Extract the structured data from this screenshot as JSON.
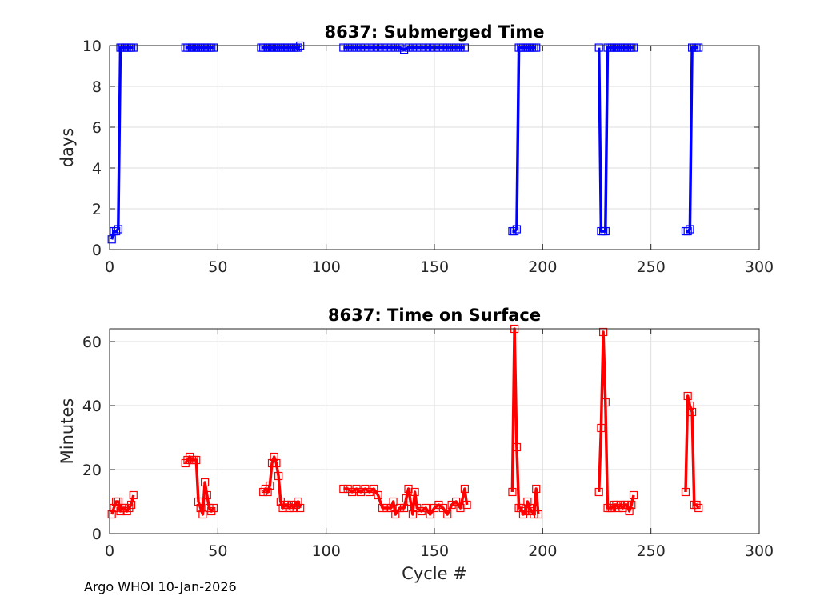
{
  "chart_data": [
    {
      "type": "line",
      "title": "8637: Submerged Time",
      "xlabel": "",
      "ylabel": "days",
      "xlim": [
        0,
        300
      ],
      "ylim": [
        0,
        10
      ],
      "xticks": [
        0,
        50,
        100,
        150,
        200,
        250,
        300
      ],
      "yticks": [
        0,
        2,
        4,
        6,
        8,
        10
      ],
      "grid": true,
      "color": "#0000ff",
      "marker": "square",
      "series": [
        {
          "name": "seg1",
          "x": [
            1,
            2,
            3,
            4,
            5,
            6,
            7,
            8,
            9,
            10,
            11
          ],
          "y": [
            0.5,
            0.9,
            0.9,
            1.0,
            9.9,
            9.9,
            9.9,
            9.9,
            9.9,
            9.9,
            9.9
          ]
        },
        {
          "name": "seg2",
          "x": [
            35,
            36,
            37,
            38,
            39,
            40,
            41,
            42,
            43,
            44,
            45,
            46,
            47,
            48
          ],
          "y": [
            9.9,
            9.9,
            9.9,
            9.9,
            9.9,
            9.9,
            9.9,
            9.9,
            9.9,
            9.9,
            9.9,
            9.9,
            9.9,
            9.9
          ]
        },
        {
          "name": "seg3",
          "x": [
            70,
            71,
            72,
            73,
            74,
            75,
            76,
            77,
            78,
            79,
            80,
            81,
            82,
            83,
            84,
            85,
            86,
            87,
            88
          ],
          "y": [
            9.9,
            9.9,
            9.9,
            9.9,
            9.9,
            9.9,
            9.9,
            9.9,
            9.9,
            9.9,
            9.9,
            9.9,
            9.9,
            9.9,
            9.9,
            9.9,
            9.9,
            9.9,
            10.0
          ]
        },
        {
          "name": "seg4",
          "x": [
            108,
            110,
            112,
            114,
            116,
            118,
            120,
            122,
            124,
            126,
            128,
            130,
            132,
            134,
            136,
            138,
            140,
            142,
            144,
            146,
            148,
            150,
            152,
            154,
            156,
            158,
            160,
            162,
            164
          ],
          "y": [
            9.9,
            9.9,
            9.9,
            9.9,
            9.9,
            9.9,
            9.9,
            9.9,
            9.9,
            9.9,
            9.9,
            9.9,
            9.9,
            9.9,
            9.8,
            9.9,
            9.9,
            9.9,
            9.9,
            9.9,
            9.9,
            9.9,
            9.9,
            9.9,
            9.9,
            9.9,
            9.9,
            9.9,
            9.9
          ]
        },
        {
          "name": "seg5",
          "x": [
            186,
            187,
            188,
            189,
            190,
            191,
            192,
            193,
            194,
            195,
            196,
            197
          ],
          "y": [
            0.9,
            0.9,
            1.0,
            9.9,
            9.9,
            9.9,
            9.9,
            9.9,
            9.9,
            9.9,
            9.9,
            9.9
          ]
        },
        {
          "name": "seg6",
          "x": [
            226,
            227,
            228,
            229,
            230,
            231,
            232,
            233,
            234,
            235,
            236,
            237,
            238,
            239,
            240,
            241,
            242
          ],
          "y": [
            9.9,
            0.9,
            0.9,
            0.9,
            9.9,
            9.9,
            9.9,
            9.9,
            9.9,
            9.9,
            9.9,
            9.9,
            9.9,
            9.9,
            9.9,
            9.9,
            9.9
          ]
        },
        {
          "name": "seg7",
          "x": [
            266,
            267,
            268,
            269,
            270,
            271,
            272
          ],
          "y": [
            0.9,
            0.9,
            1.0,
            9.9,
            9.9,
            9.9,
            9.9
          ]
        }
      ]
    },
    {
      "type": "line",
      "title": "8637: Time on Surface",
      "xlabel": "Cycle #",
      "ylabel": "Minutes",
      "xlim": [
        0,
        300
      ],
      "ylim": [
        0,
        64
      ],
      "xticks": [
        0,
        50,
        100,
        150,
        200,
        250,
        300
      ],
      "yticks": [
        0,
        20,
        40,
        60
      ],
      "grid": true,
      "color": "#ff0000",
      "marker": "square",
      "series": [
        {
          "name": "seg1",
          "x": [
            1,
            2,
            3,
            4,
            5,
            6,
            7,
            8,
            9,
            10,
            11
          ],
          "y": [
            6,
            8,
            10,
            10,
            7,
            8,
            8,
            7,
            8,
            9,
            12
          ]
        },
        {
          "name": "seg2",
          "x": [
            35,
            36,
            37,
            38,
            39,
            40,
            41,
            42,
            43,
            44,
            45,
            46,
            47,
            48
          ],
          "y": [
            22,
            23,
            24,
            23,
            23,
            23,
            10,
            8,
            6,
            16,
            12,
            8,
            7,
            8
          ]
        },
        {
          "name": "seg3",
          "x": [
            71,
            72,
            73,
            74,
            75,
            76,
            77,
            78,
            79,
            80,
            81,
            82,
            83,
            84,
            85,
            86,
            87,
            88
          ],
          "y": [
            13,
            14,
            13,
            15,
            22,
            24,
            22,
            18,
            10,
            8,
            9,
            9,
            8,
            9,
            8,
            9,
            10,
            8
          ]
        },
        {
          "name": "seg4",
          "x": [
            108,
            110,
            112,
            114,
            116,
            118,
            120,
            122,
            124,
            126,
            128,
            130,
            131,
            132,
            134,
            136,
            137,
            138,
            139,
            140,
            141,
            142,
            144,
            146,
            148,
            150,
            152,
            154,
            156,
            158,
            160,
            162,
            164,
            165
          ],
          "y": [
            14,
            14,
            13,
            14,
            13,
            14,
            13,
            14,
            12,
            8,
            8,
            8,
            10,
            6,
            8,
            8,
            11,
            14,
            10,
            6,
            13,
            8,
            7,
            8,
            6,
            8,
            9,
            8,
            6,
            9,
            10,
            8,
            14,
            9
          ]
        },
        {
          "name": "seg5",
          "x": [
            186,
            187,
            188,
            189,
            190,
            191,
            192,
            193,
            194,
            195,
            196,
            197,
            198
          ],
          "y": [
            13,
            64,
            27,
            8,
            8,
            6,
            7,
            10,
            8,
            7,
            6,
            14,
            6
          ]
        },
        {
          "name": "seg6",
          "x": [
            226,
            227,
            228,
            229,
            230,
            231,
            232,
            233,
            234,
            235,
            236,
            237,
            238,
            239,
            240,
            241,
            242
          ],
          "y": [
            13,
            33,
            63,
            41,
            8,
            8,
            8,
            9,
            9,
            8,
            9,
            8,
            9,
            9,
            7,
            9,
            12
          ]
        },
        {
          "name": "seg7",
          "x": [
            266,
            267,
            268,
            269,
            270,
            271,
            272
          ],
          "y": [
            13,
            43,
            40,
            38,
            9,
            9,
            8
          ]
        }
      ]
    }
  ],
  "footer": "Argo WHOI 10-Jan-2026"
}
